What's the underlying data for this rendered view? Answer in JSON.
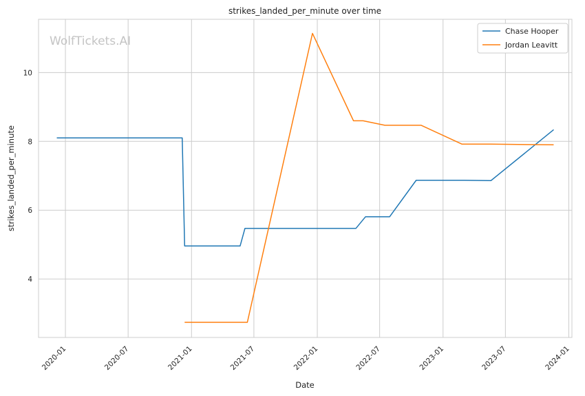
{
  "chart_data": {
    "type": "line",
    "title": "strikes_landed_per_minute over time",
    "xlabel": "Date",
    "ylabel": "strikes_landed_per_minute",
    "watermark": "WolfTickets.AI",
    "xlim": [
      "2019-10-15",
      "2024-01-10"
    ],
    "ylim": [
      2.3,
      11.55
    ],
    "x_ticks": [
      "2020-01-01",
      "2020-07-01",
      "2021-01-01",
      "2021-07-01",
      "2022-01-01",
      "2022-07-01",
      "2023-01-01",
      "2023-07-01",
      "2024-01-01"
    ],
    "x_tick_labels": [
      "2020-01",
      "2020-07",
      "2021-01",
      "2021-07",
      "2022-01",
      "2022-07",
      "2023-01",
      "2023-07",
      "2024-01"
    ],
    "y_ticks": [
      4,
      6,
      8,
      10
    ],
    "y_tick_labels": [
      "4",
      "6",
      "8",
      "10"
    ],
    "grid": true,
    "legend": "top-right",
    "series": [
      {
        "name": "Chase Hooper",
        "color": "#1f77b4",
        "points": [
          [
            "2019-12-07",
            8.1
          ],
          [
            "2020-12-05",
            8.1
          ],
          [
            "2020-12-12",
            4.96
          ],
          [
            "2021-05-22",
            4.96
          ],
          [
            "2021-06-05",
            5.47
          ],
          [
            "2022-04-23",
            5.47
          ],
          [
            "2022-05-21",
            5.81
          ],
          [
            "2022-07-30",
            5.81
          ],
          [
            "2022-10-15",
            6.87
          ],
          [
            "2023-03-04",
            6.87
          ],
          [
            "2023-05-20",
            6.86
          ],
          [
            "2023-11-18",
            8.34
          ]
        ]
      },
      {
        "name": "Jordan Leavitt",
        "color": "#ff7f0e",
        "points": [
          [
            "2020-12-12",
            2.74
          ],
          [
            "2021-06-12",
            2.74
          ],
          [
            "2021-12-18",
            11.14
          ],
          [
            "2022-04-16",
            8.6
          ],
          [
            "2022-05-14",
            8.6
          ],
          [
            "2022-07-16",
            8.47
          ],
          [
            "2022-10-29",
            8.47
          ],
          [
            "2023-02-25",
            7.92
          ],
          [
            "2023-05-20",
            7.92
          ],
          [
            "2023-11-18",
            7.9
          ]
        ]
      }
    ]
  }
}
